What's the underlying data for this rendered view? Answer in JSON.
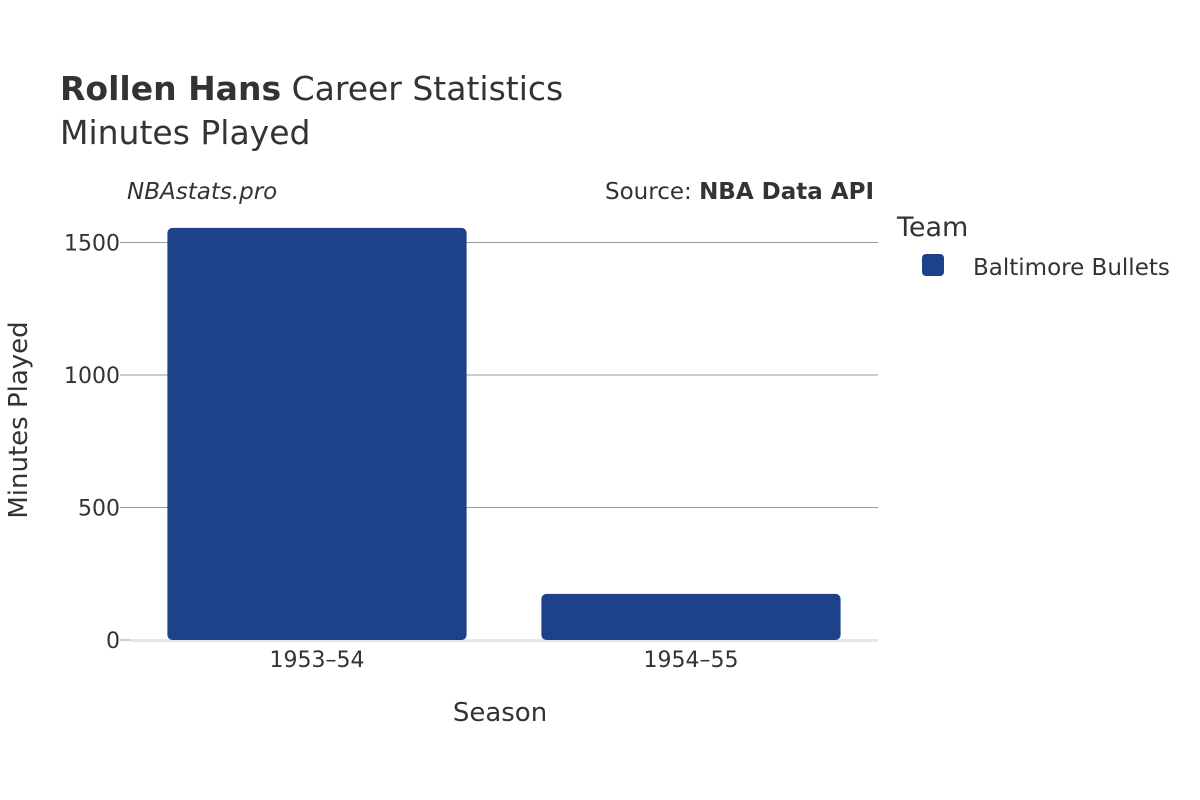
{
  "header": {
    "title_player": "Rollen Hans",
    "title_rest": " Career Statistics",
    "subtitle": "Minutes Played"
  },
  "credits": {
    "site": "NBAstats.pro",
    "source_prefix": "Source: ",
    "source_name": "NBA Data API"
  },
  "legend": {
    "title": "Team",
    "items": [
      {
        "label": "Baltimore Bullets",
        "color": "#1d428a"
      }
    ]
  },
  "chart_data": {
    "type": "bar",
    "categories": [
      "1953–54",
      "1954–55"
    ],
    "series": [
      {
        "name": "Baltimore Bullets",
        "color": "#1d428a",
        "values": [
          1555,
          174
        ]
      }
    ],
    "xlabel": "Season",
    "ylabel": "Minutes Played",
    "ylim": [
      0,
      1600
    ],
    "yticks": [
      0,
      500,
      1000,
      1500
    ],
    "grid": true,
    "legend_position": "right"
  }
}
